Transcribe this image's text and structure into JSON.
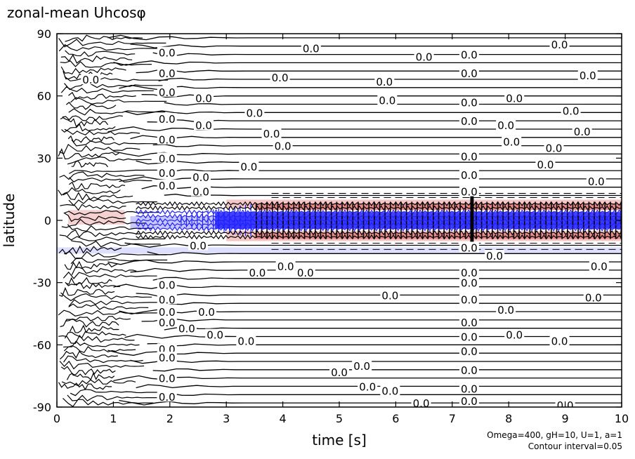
{
  "chart_data": {
    "type": "heatmap",
    "title": "zonal-mean Uhcosφ",
    "xlabel": "time [s]",
    "ylabel": "latitude",
    "xlim": [
      0,
      10
    ],
    "ylim": [
      -90,
      90
    ],
    "xticks": [
      0,
      1,
      2,
      3,
      4,
      5,
      6,
      7,
      8,
      9,
      10
    ],
    "yticks": [
      -90,
      -60,
      -30,
      0,
      30,
      60,
      90
    ],
    "grid": false,
    "contour_interval": 0.05,
    "contour_label": "0.0",
    "contour_latitudes": [
      88,
      84,
      80,
      76,
      72,
      68,
      64,
      60,
      56,
      52,
      48,
      44,
      40,
      36,
      32,
      28,
      24,
      20,
      16,
      12,
      -12,
      -16,
      -20,
      -24,
      -28,
      -32,
      -36,
      -40,
      -44,
      -48,
      -52,
      -56,
      -60,
      -64,
      -68,
      -72,
      -76,
      -80,
      -84,
      -88
    ],
    "contour_labels": [
      {
        "t": 1.95,
        "lat": 81
      },
      {
        "t": 4.5,
        "lat": 83
      },
      {
        "t": 6.5,
        "lat": 79
      },
      {
        "t": 7.3,
        "lat": 80
      },
      {
        "t": 8.9,
        "lat": 85
      },
      {
        "t": 0.6,
        "lat": 68
      },
      {
        "t": 1.95,
        "lat": 71
      },
      {
        "t": 3.95,
        "lat": 69
      },
      {
        "t": 5.8,
        "lat": 67
      },
      {
        "t": 7.3,
        "lat": 71
      },
      {
        "t": 9.4,
        "lat": 70
      },
      {
        "t": 1.95,
        "lat": 62
      },
      {
        "t": 2.6,
        "lat": 59
      },
      {
        "t": 5.85,
        "lat": 58
      },
      {
        "t": 7.3,
        "lat": 57
      },
      {
        "t": 8.1,
        "lat": 59
      },
      {
        "t": 3.5,
        "lat": 52
      },
      {
        "t": 9.1,
        "lat": 53
      },
      {
        "t": 1.95,
        "lat": 49
      },
      {
        "t": 2.6,
        "lat": 46
      },
      {
        "t": 7.3,
        "lat": 48
      },
      {
        "t": 7.95,
        "lat": 46
      },
      {
        "t": 3.8,
        "lat": 42
      },
      {
        "t": 9.3,
        "lat": 43
      },
      {
        "t": 1.95,
        "lat": 39
      },
      {
        "t": 4.0,
        "lat": 36
      },
      {
        "t": 8.05,
        "lat": 38
      },
      {
        "t": 8.8,
        "lat": 35
      },
      {
        "t": 1.95,
        "lat": 30
      },
      {
        "t": 3.4,
        "lat": 26
      },
      {
        "t": 7.3,
        "lat": 31
      },
      {
        "t": 8.65,
        "lat": 27
      },
      {
        "t": 1.95,
        "lat": 23
      },
      {
        "t": 2.55,
        "lat": 21
      },
      {
        "t": 7.3,
        "lat": 22
      },
      {
        "t": 9.55,
        "lat": 19
      },
      {
        "t": 1.95,
        "lat": 17
      },
      {
        "t": 2.55,
        "lat": 14
      },
      {
        "t": 7.3,
        "lat": 14
      },
      {
        "t": 2.5,
        "lat": -12
      },
      {
        "t": 7.3,
        "lat": -13
      },
      {
        "t": 7.75,
        "lat": -17
      },
      {
        "t": 3.55,
        "lat": -25
      },
      {
        "t": 4.05,
        "lat": -22
      },
      {
        "t": 4.4,
        "lat": -25
      },
      {
        "t": 7.3,
        "lat": -25
      },
      {
        "t": 9.6,
        "lat": -22
      },
      {
        "t": 1.95,
        "lat": -31
      },
      {
        "t": 7.3,
        "lat": -30
      },
      {
        "t": 1.95,
        "lat": -38
      },
      {
        "t": 5.9,
        "lat": -36
      },
      {
        "t": 7.3,
        "lat": -38
      },
      {
        "t": 9.5,
        "lat": -37
      },
      {
        "t": 1.95,
        "lat": -44
      },
      {
        "t": 2.65,
        "lat": -44
      },
      {
        "t": 7.95,
        "lat": -43
      },
      {
        "t": 1.95,
        "lat": -49
      },
      {
        "t": 2.3,
        "lat": -52
      },
      {
        "t": 7.3,
        "lat": -49
      },
      {
        "t": 3.35,
        "lat": -58
      },
      {
        "t": 2.8,
        "lat": -55
      },
      {
        "t": 7.3,
        "lat": -56
      },
      {
        "t": 8.1,
        "lat": -55
      },
      {
        "t": 8.9,
        "lat": -58
      },
      {
        "t": 1.95,
        "lat": -62
      },
      {
        "t": 7.3,
        "lat": -63
      },
      {
        "t": 1.95,
        "lat": -66
      },
      {
        "t": 5.4,
        "lat": -70
      },
      {
        "t": 5.0,
        "lat": -73
      },
      {
        "t": 7.3,
        "lat": -72
      },
      {
        "t": 1.95,
        "lat": -76
      },
      {
        "t": 5.5,
        "lat": -80
      },
      {
        "t": 5.9,
        "lat": -82
      },
      {
        "t": 7.3,
        "lat": -81
      },
      {
        "t": 1.95,
        "lat": -85
      },
      {
        "t": 6.45,
        "lat": -88
      },
      {
        "t": 7.3,
        "lat": -87
      },
      {
        "t": 9.0,
        "lat": -89
      }
    ],
    "jet_band": {
      "lat_range": [
        -12,
        12
      ],
      "color_positive": "#e88a8a",
      "color_negative": "#2020ff"
    }
  },
  "annotations": {
    "params": "Omega=400, gH=10, U=1, a=1",
    "contour": "Contour interval=0.05"
  },
  "colors": {
    "positive_light": "#f4c6c6",
    "positive": "#e88a8a",
    "negative_light": "#c8c8ff",
    "negative": "#2020ff",
    "line": "#000000"
  }
}
